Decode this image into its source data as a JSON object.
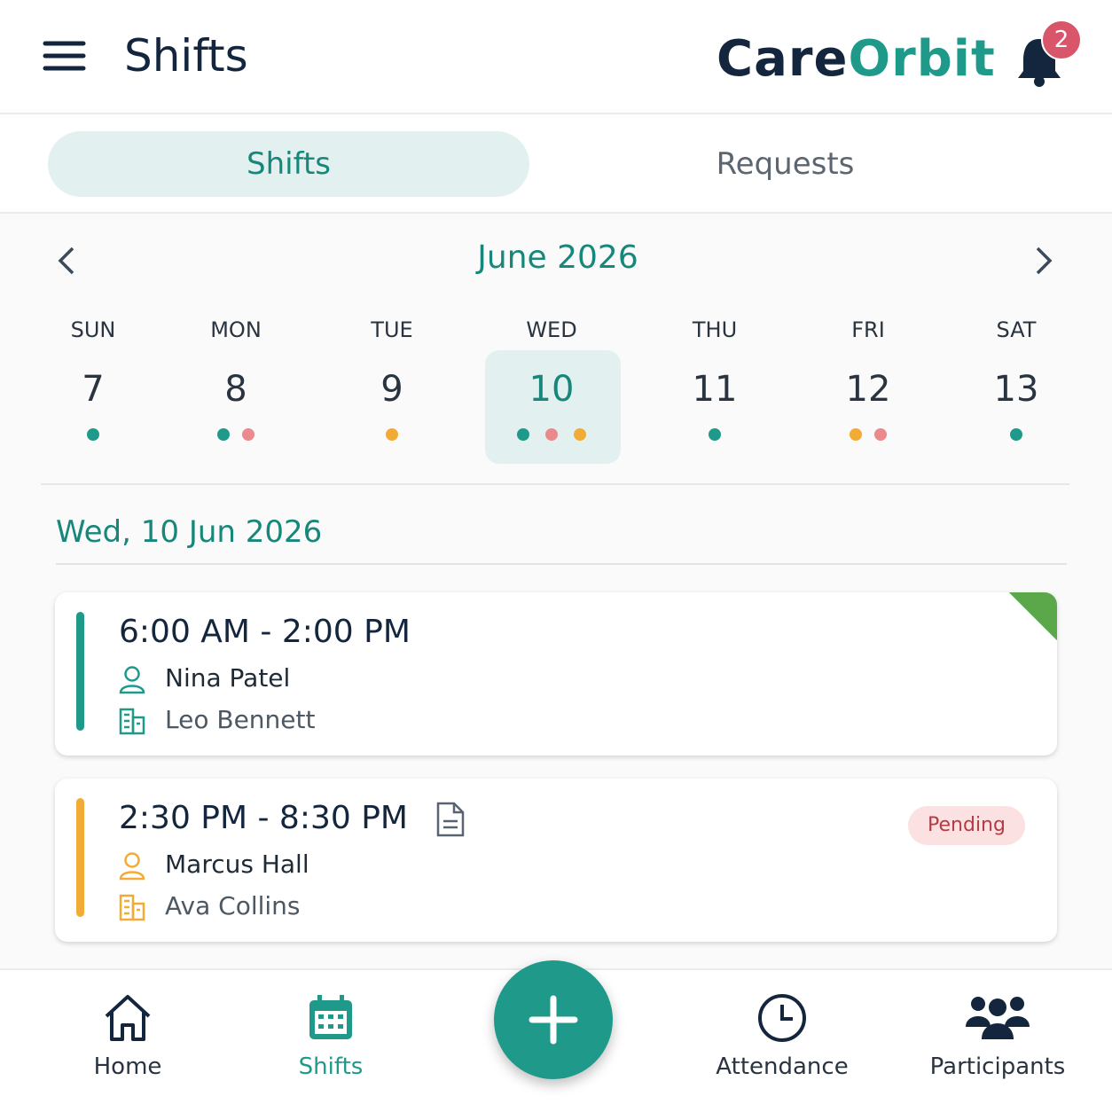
{
  "header": {
    "title": "Shifts",
    "logo": {
      "first": "Care",
      "second": "Orbit"
    },
    "notification_count": "2"
  },
  "tabs": {
    "items": [
      "Shifts",
      "Requests"
    ],
    "active": 0
  },
  "calendar": {
    "month": "June 2026",
    "selected": 3,
    "days": [
      {
        "name": "SUN",
        "date": "7",
        "dots": [
          "#1f9a8a"
        ]
      },
      {
        "name": "MON",
        "date": "8",
        "dots": [
          "#1f9a8a",
          "#ea8a8c"
        ]
      },
      {
        "name": "TUE",
        "date": "9",
        "dots": [
          "#f2ac36"
        ]
      },
      {
        "name": "WED",
        "date": "10",
        "dots": [
          "#1f9a8a",
          "#ea8a8c",
          "#f2ac36"
        ]
      },
      {
        "name": "THU",
        "date": "11",
        "dots": [
          "#1f9a8a"
        ]
      },
      {
        "name": "FRI",
        "date": "12",
        "dots": [
          "#f2ac36",
          "#ea8a8c"
        ]
      },
      {
        "name": "SAT",
        "date": "13",
        "dots": [
          "#1f9a8a"
        ]
      }
    ]
  },
  "day_heading": "Wed, 10 Jun 2026",
  "shifts": [
    {
      "time": "6:00 AM - 2:00 PM",
      "worker": "Nina Patel",
      "participant": "Leo Bennett",
      "color": "#1f9a8a",
      "corner_color": "#5aa84a"
    },
    {
      "time": "2:30 PM - 8:30 PM",
      "worker": "Marcus Hall",
      "participant": "Ava Collins",
      "color": "#f2ac36",
      "status": "Pending",
      "has_note": true
    }
  ],
  "nav": {
    "items": [
      "Home",
      "Shifts",
      "Attendance",
      "Participants"
    ],
    "active": 1
  }
}
